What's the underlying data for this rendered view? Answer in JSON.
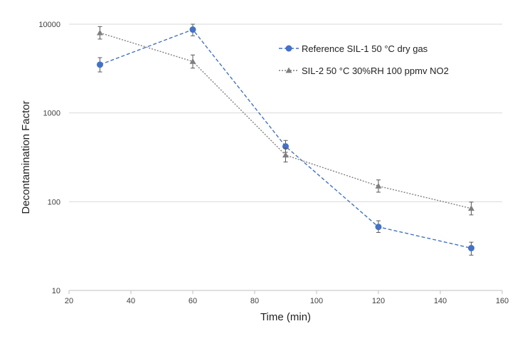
{
  "chart_data": {
    "type": "line",
    "title": "",
    "xlabel": "Time (min)",
    "ylabel": "Decontamination Factor",
    "x_scale": "linear",
    "y_scale": "log",
    "xlim": [
      20,
      160
    ],
    "ylim": [
      10,
      10000
    ],
    "x_ticks": [
      20,
      40,
      60,
      80,
      100,
      120,
      140,
      160
    ],
    "x_tick_labels": [
      "20",
      "40",
      "60",
      "80",
      "100",
      "120",
      "140",
      "160"
    ],
    "y_ticks": [
      10,
      100,
      1000,
      10000
    ],
    "y_tick_labels": [
      "10",
      "100",
      "1000",
      "10000"
    ],
    "grid": "horizontal",
    "legend_position": "top-right",
    "series": [
      {
        "name": "Reference SIL-1 50 °C dry gas",
        "color": "#4472C4",
        "marker": "circle",
        "line_style": "dashed",
        "x": [
          30,
          60,
          90,
          120,
          150
        ],
        "y": [
          3500,
          8700,
          420,
          52,
          30
        ],
        "err_low": [
          2900,
          7400,
          360,
          45,
          25
        ],
        "err_high": [
          4200,
          10000,
          490,
          61,
          35
        ]
      },
      {
        "name": "SIL-2 50 °C 30%RH 100 ppmv NO2",
        "color": "#7F7F7F",
        "marker": "triangle",
        "line_style": "dotted",
        "x": [
          30,
          60,
          90,
          120,
          150
        ],
        "y": [
          8000,
          3800,
          335,
          150,
          84
        ],
        "err_low": [
          6800,
          3200,
          280,
          128,
          71
        ],
        "err_high": [
          9400,
          4500,
          400,
          176,
          99
        ]
      }
    ]
  }
}
